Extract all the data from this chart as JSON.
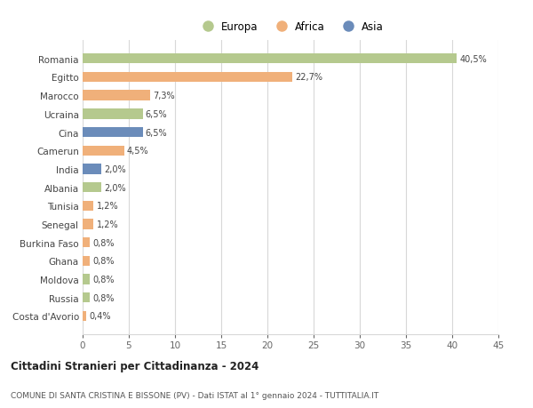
{
  "categories": [
    "Romania",
    "Egitto",
    "Marocco",
    "Ucraina",
    "Cina",
    "Camerun",
    "India",
    "Albania",
    "Tunisia",
    "Senegal",
    "Burkina Faso",
    "Ghana",
    "Moldova",
    "Russia",
    "Costa d'Avorio"
  ],
  "values": [
    40.5,
    22.7,
    7.3,
    6.5,
    6.5,
    4.5,
    2.0,
    2.0,
    1.2,
    1.2,
    0.8,
    0.8,
    0.8,
    0.8,
    0.4
  ],
  "labels": [
    "40,5%",
    "22,7%",
    "7,3%",
    "6,5%",
    "6,5%",
    "4,5%",
    "2,0%",
    "2,0%",
    "1,2%",
    "1,2%",
    "0,8%",
    "0,8%",
    "0,8%",
    "0,8%",
    "0,4%"
  ],
  "colors": [
    "#b5c98e",
    "#f0b07a",
    "#f0b07a",
    "#b5c98e",
    "#6b8cba",
    "#f0b07a",
    "#6b8cba",
    "#b5c98e",
    "#f0b07a",
    "#f0b07a",
    "#f0b07a",
    "#f0b07a",
    "#b5c98e",
    "#b5c98e",
    "#f0b07a"
  ],
  "legend_labels": [
    "Europa",
    "Africa",
    "Asia"
  ],
  "legend_colors": [
    "#b5c98e",
    "#f0b07a",
    "#6b8cba"
  ],
  "title": "Cittadini Stranieri per Cittadinanza - 2024",
  "subtitle": "COMUNE DI SANTA CRISTINA E BISSONE (PV) - Dati ISTAT al 1° gennaio 2024 - TUTTITALIA.IT",
  "xlim": [
    0,
    45
  ],
  "xticks": [
    0,
    5,
    10,
    15,
    20,
    25,
    30,
    35,
    40,
    45
  ],
  "background_color": "#ffffff",
  "grid_color": "#d8d8d8",
  "bar_height": 0.55
}
